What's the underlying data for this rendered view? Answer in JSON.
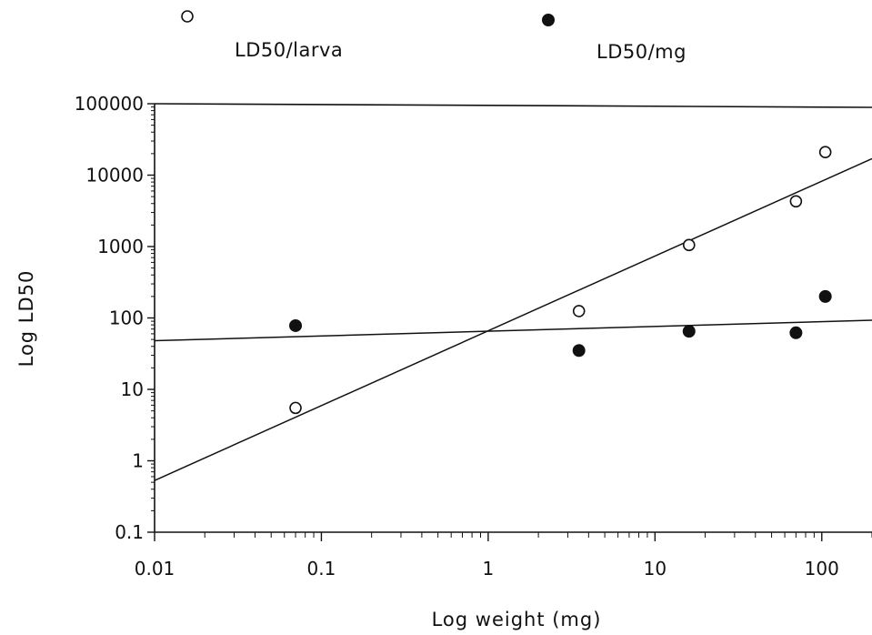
{
  "chart_data": {
    "type": "scatter",
    "xlabel": "Log weight (mg)",
    "ylabel": "Log LD50",
    "x_scale": "log",
    "y_scale": "log",
    "xlim": [
      0.01,
      200
    ],
    "ylim": [
      0.1,
      100000
    ],
    "x_ticks": [
      "0.01",
      "0.1",
      "1",
      "10",
      "100"
    ],
    "y_ticks": [
      "0.1",
      "1",
      "10",
      "100",
      "1000",
      "10000",
      "100000"
    ],
    "legend": {
      "placement": "top",
      "entries": [
        {
          "label": "LD50/larva",
          "marker": "open-circle"
        },
        {
          "label": "LD50/mg",
          "marker": "filled-circle"
        }
      ]
    },
    "series": [
      {
        "name": "LD50/larva",
        "marker": "open-circle",
        "x": [
          0.07,
          3.5,
          16,
          70,
          105
        ],
        "y": [
          5.5,
          125,
          1050,
          4300,
          21000
        ],
        "fit_line": {
          "x": [
            0.01,
            200
          ],
          "y": [
            0.53,
            17000
          ]
        }
      },
      {
        "name": "LD50/mg",
        "marker": "filled-circle",
        "x": [
          0.07,
          3.5,
          16,
          70,
          105
        ],
        "y": [
          78,
          35,
          65,
          62,
          200
        ],
        "fit_line": {
          "x": [
            0.01,
            200
          ],
          "y": [
            48,
            93
          ]
        }
      }
    ],
    "grid": false,
    "colors": {
      "ink": "#111111",
      "background": "#ffffff"
    }
  }
}
